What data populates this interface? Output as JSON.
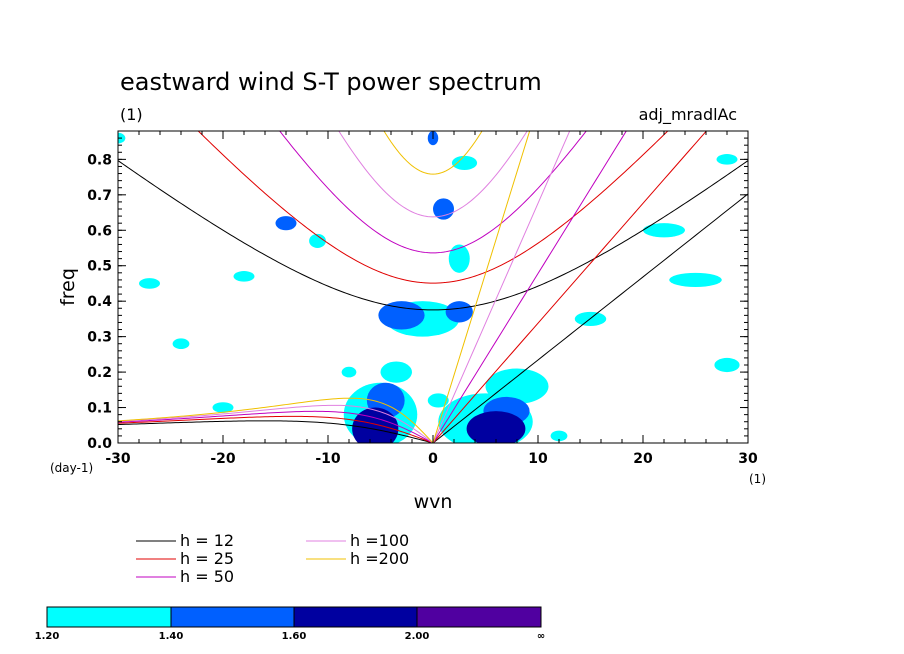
{
  "chart_data": {
    "type": "contour",
    "title": "eastward wind S-T power spectrum",
    "subtitle_left": "(1)",
    "subtitle_right": "adj_mradlAc",
    "xlabel": "wvn",
    "ylabel": "freq",
    "x_unit": "(1)",
    "y_unit": "(day-1)",
    "xlim": [
      -30,
      30
    ],
    "ylim": [
      0,
      0.88
    ],
    "x_ticks": [
      -30,
      -20,
      -10,
      0,
      10,
      20,
      30
    ],
    "x_tick_labels": [
      "-30",
      "-20",
      "-10",
      "0",
      "10",
      "20",
      "30"
    ],
    "y_ticks": [
      0,
      0.1,
      0.2,
      0.3,
      0.4,
      0.5,
      0.6,
      0.7,
      0.8
    ],
    "y_tick_labels": [
      "0.0",
      "0.1",
      "0.2",
      "0.3",
      "0.4",
      "0.5",
      "0.6",
      "0.7",
      "0.8"
    ],
    "dispersion_curves": [
      {
        "label": "h = 12",
        "h": 12,
        "color": "#000000"
      },
      {
        "label": "h = 25",
        "h": 25,
        "color": "#e00000"
      },
      {
        "label": "h = 50",
        "h": 50,
        "color": "#c000c0"
      },
      {
        "label": "h =100",
        "h": 100,
        "color": "#e080e0"
      },
      {
        "label": "h =200",
        "h": 200,
        "color": "#f0c000"
      }
    ],
    "contour_levels": {
      "labels": [
        "1.20",
        "1.40",
        "1.60",
        "2.00",
        "∞"
      ],
      "colors": [
        "#00ffff",
        "#0060ff",
        "#0000a0",
        "#5000a0"
      ]
    },
    "contour_blobs": [
      {
        "x": -5.5,
        "y": 0.04,
        "rx": 2.2,
        "ry": 0.06,
        "level": 3
      },
      {
        "x": -4.5,
        "y": 0.12,
        "rx": 1.8,
        "ry": 0.05,
        "level": 2
      },
      {
        "x": -3.5,
        "y": 0.2,
        "rx": 1.5,
        "ry": 0.03,
        "level": 1
      },
      {
        "x": -5,
        "y": 0.08,
        "rx": 3.5,
        "ry": 0.09,
        "level": 1
      },
      {
        "x": 6,
        "y": 0.04,
        "rx": 2.8,
        "ry": 0.05,
        "level": 3
      },
      {
        "x": 7,
        "y": 0.09,
        "rx": 2.2,
        "ry": 0.04,
        "level": 2
      },
      {
        "x": 8,
        "y": 0.16,
        "rx": 3.0,
        "ry": 0.05,
        "level": 1
      },
      {
        "x": 5,
        "y": 0.06,
        "rx": 4.5,
        "ry": 0.08,
        "level": 1
      },
      {
        "x": -3,
        "y": 0.36,
        "rx": 2.2,
        "ry": 0.04,
        "level": 2
      },
      {
        "x": -1,
        "y": 0.35,
        "rx": 3.5,
        "ry": 0.05,
        "level": 1
      },
      {
        "x": 2.5,
        "y": 0.37,
        "rx": 1.3,
        "ry": 0.03,
        "level": 2
      },
      {
        "x": 2.5,
        "y": 0.52,
        "rx": 1.0,
        "ry": 0.04,
        "level": 1
      },
      {
        "x": 1,
        "y": 0.66,
        "rx": 1.0,
        "ry": 0.03,
        "level": 2
      },
      {
        "x": -14,
        "y": 0.62,
        "rx": 1.0,
        "ry": 0.02,
        "level": 2
      },
      {
        "x": -11,
        "y": 0.57,
        "rx": 0.8,
        "ry": 0.02,
        "level": 1
      },
      {
        "x": 0.5,
        "y": 0.12,
        "rx": 1.0,
        "ry": 0.02,
        "level": 1
      },
      {
        "x": 0,
        "y": 0.86,
        "rx": 0.5,
        "ry": 0.02,
        "level": 2
      },
      {
        "x": 3,
        "y": 0.79,
        "rx": 1.2,
        "ry": 0.02,
        "level": 1
      },
      {
        "x": -18,
        "y": 0.47,
        "rx": 1.0,
        "ry": 0.015,
        "level": 1
      },
      {
        "x": -27,
        "y": 0.45,
        "rx": 1.0,
        "ry": 0.015,
        "level": 1
      },
      {
        "x": -24,
        "y": 0.28,
        "rx": 0.8,
        "ry": 0.015,
        "level": 1
      },
      {
        "x": 22,
        "y": 0.6,
        "rx": 2.0,
        "ry": 0.02,
        "level": 1
      },
      {
        "x": 25,
        "y": 0.46,
        "rx": 2.5,
        "ry": 0.02,
        "level": 1
      },
      {
        "x": 15,
        "y": 0.35,
        "rx": 1.5,
        "ry": 0.02,
        "level": 1
      },
      {
        "x": 28,
        "y": 0.22,
        "rx": 1.2,
        "ry": 0.02,
        "level": 1
      },
      {
        "x": -20,
        "y": 0.1,
        "rx": 1.0,
        "ry": 0.015,
        "level": 1
      },
      {
        "x": -8,
        "y": 0.2,
        "rx": 0.7,
        "ry": 0.015,
        "level": 1
      },
      {
        "x": 12,
        "y": 0.02,
        "rx": 0.8,
        "ry": 0.015,
        "level": 1
      },
      {
        "x": -30,
        "y": 0.86,
        "rx": 0.7,
        "ry": 0.015,
        "level": 1
      },
      {
        "x": 28,
        "y": 0.8,
        "rx": 1.0,
        "ry": 0.015,
        "level": 1
      }
    ]
  }
}
